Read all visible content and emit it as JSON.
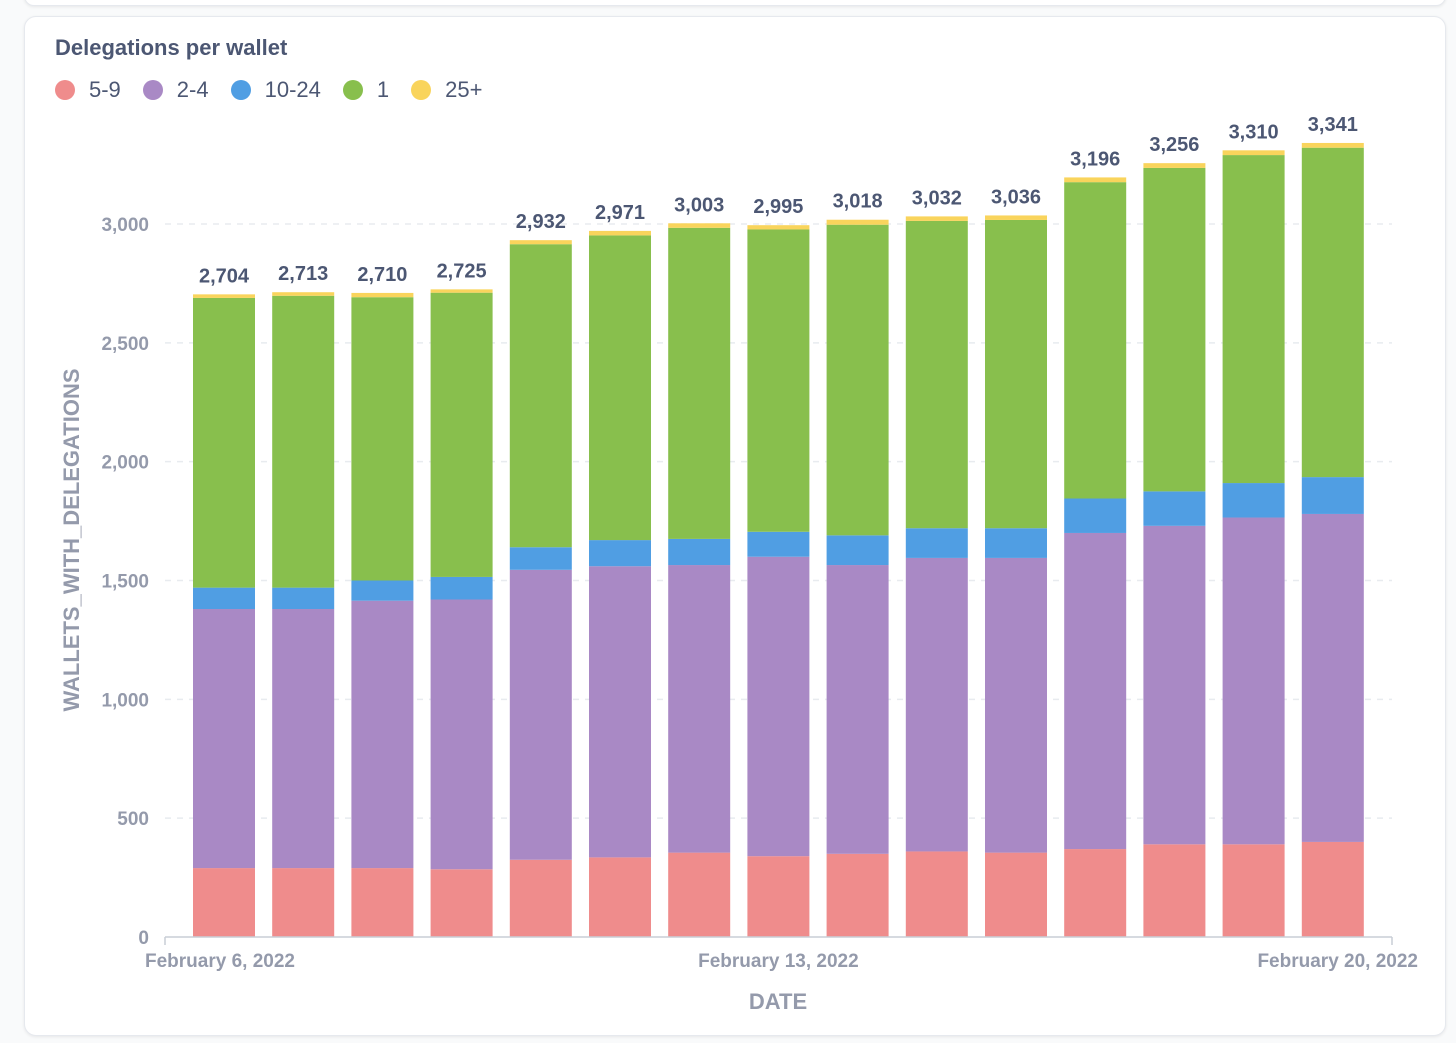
{
  "card": {
    "title": "Delegations per wallet"
  },
  "chart_data": {
    "type": "bar",
    "stacked": true,
    "title": "Delegations per wallet",
    "xlabel": "DATE",
    "ylabel": "WALLETS_WITH_DELEGATIONS",
    "ylim": [
      0,
      3400
    ],
    "y_ticks": [
      0,
      500,
      1000,
      1500,
      2000,
      2500,
      3000
    ],
    "y_tick_labels": [
      "0",
      "500",
      "1,000",
      "1,500",
      "2,000",
      "2,500",
      "3,000"
    ],
    "grid": true,
    "legend_position": "top-left",
    "categories": [
      "2022-02-06",
      "2022-02-07",
      "2022-02-08",
      "2022-02-09",
      "2022-02-10",
      "2022-02-11",
      "2022-02-12",
      "2022-02-13",
      "2022-02-14",
      "2022-02-15",
      "2022-02-16",
      "2022-02-17",
      "2022-02-18",
      "2022-02-19",
      "2022-02-20"
    ],
    "x_tick_labels": [
      {
        "category": "2022-02-06",
        "label": "February 6, 2022"
      },
      {
        "category": "2022-02-13",
        "label": "February 13, 2022"
      },
      {
        "category": "2022-02-20",
        "label": "February 20, 2022"
      }
    ],
    "series": [
      {
        "name": "5-9",
        "color": "#ef8c8c",
        "values": [
          290,
          290,
          290,
          285,
          325,
          335,
          355,
          340,
          350,
          360,
          355,
          370,
          390,
          390,
          400
        ]
      },
      {
        "name": "2-4",
        "color": "#a989c5",
        "values": [
          1090,
          1090,
          1125,
          1135,
          1220,
          1225,
          1210,
          1260,
          1215,
          1235,
          1240,
          1330,
          1340,
          1375,
          1380
        ]
      },
      {
        "name": "10-24",
        "color": "#509ee3",
        "values": [
          90,
          90,
          85,
          95,
          95,
          110,
          110,
          105,
          125,
          125,
          125,
          145,
          145,
          145,
          155
        ]
      },
      {
        "name": "1",
        "color": "#88bf4d",
        "values": [
          1219,
          1228,
          1192,
          1196,
          1275,
          1282,
          1309,
          1272,
          1307,
          1293,
          1297,
          1331,
          1361,
          1380,
          1386
        ]
      },
      {
        "name": "25+",
        "color": "#f9d45c",
        "values": [
          15,
          15,
          18,
          14,
          17,
          19,
          19,
          18,
          21,
          19,
          19,
          20,
          20,
          20,
          20
        ]
      }
    ],
    "totals": [
      2704,
      2713,
      2710,
      2725,
      2932,
      2971,
      3003,
      2995,
      3018,
      3032,
      3036,
      3196,
      3256,
      3310,
      3341
    ],
    "total_labels": [
      "2,704",
      "2,713",
      "2,710",
      "2,725",
      "2,932",
      "2,971",
      "3,003",
      "2,995",
      "3,018",
      "3,032",
      "3,036",
      "3,196",
      "3,256",
      "3,310",
      "3,341"
    ]
  },
  "colors": {
    "text": "#4c5773",
    "axis_text": "#949aab",
    "grid": "#e8ebef"
  }
}
